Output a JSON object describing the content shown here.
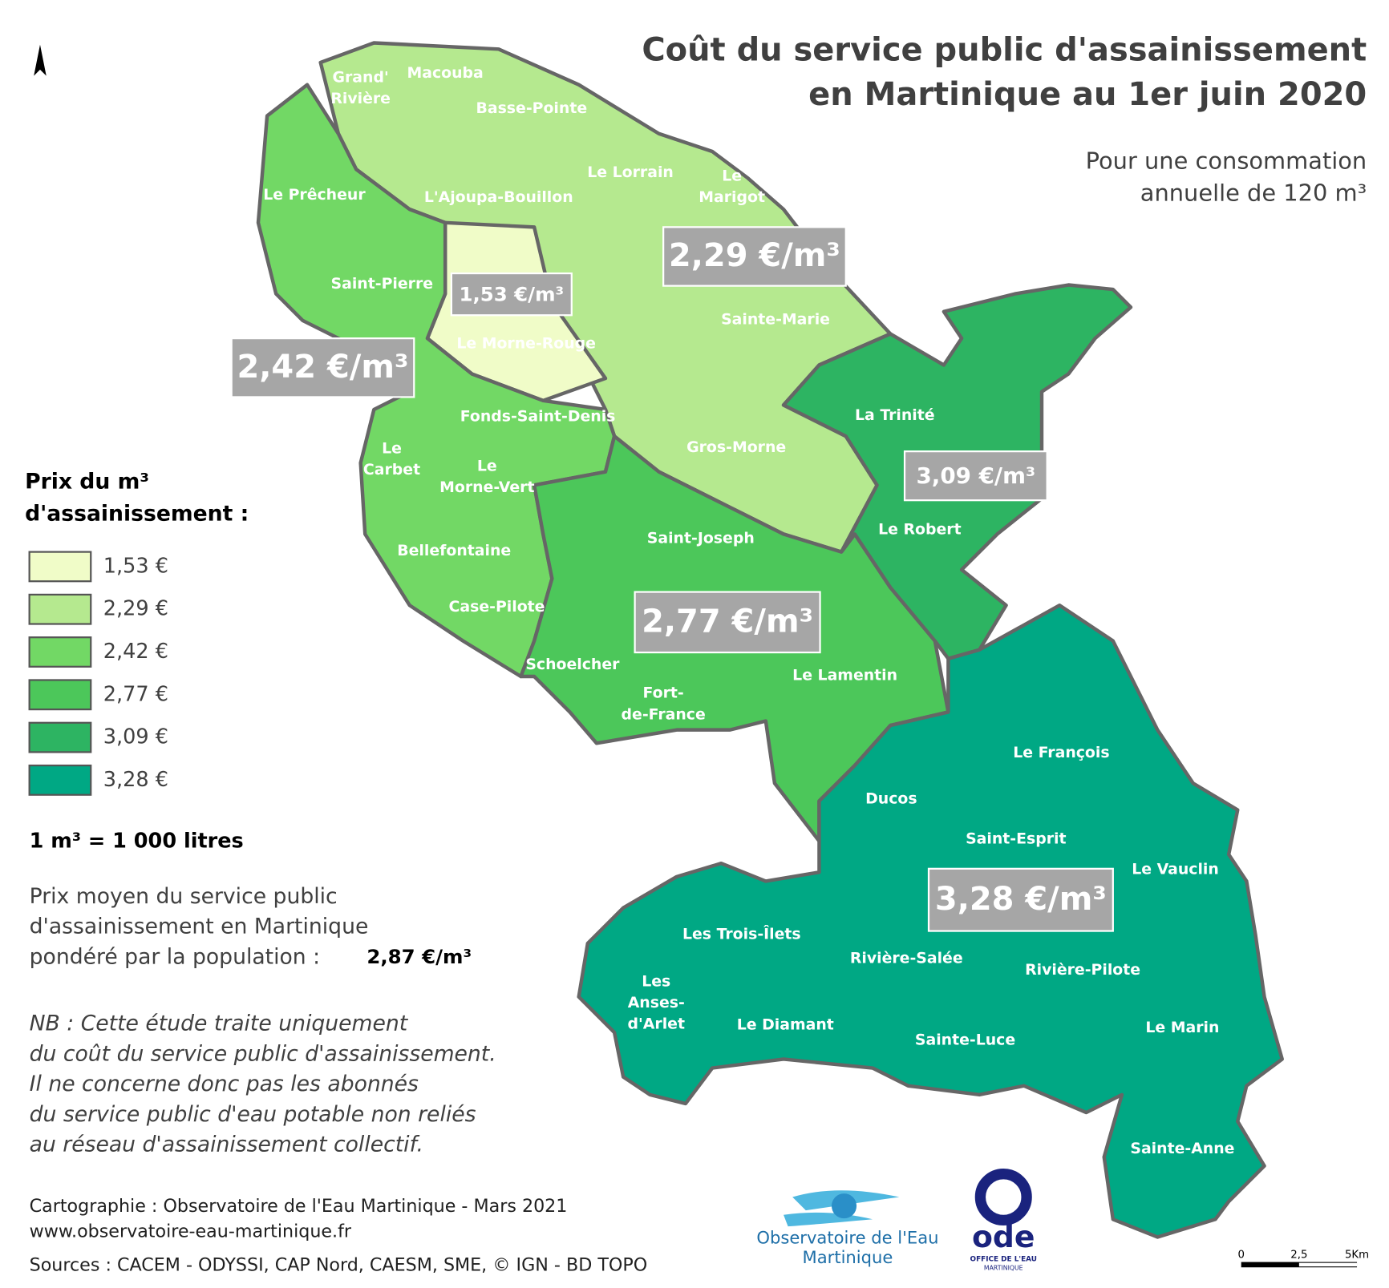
{
  "title": [
    "Coût du service public d'assainissement",
    "en Martinique au 1er juin 2020"
  ],
  "subtitle": [
    "Pour une consommation",
    "annuelle de 120 m³"
  ],
  "north": "N",
  "legend": {
    "title": [
      "Prix du m³",
      "d'assainissement :"
    ],
    "items": [
      {
        "label": "1,53 €",
        "color": "#f0fcc8"
      },
      {
        "label": "2,29 €",
        "color": "#b5e98f"
      },
      {
        "label": "2,42 €",
        "color": "#72d865"
      },
      {
        "label": "2,77 €",
        "color": "#4cc75a"
      },
      {
        "label": "3,09 €",
        "color": "#2db462"
      },
      {
        "label": "3,28 €",
        "color": "#00a884"
      }
    ]
  },
  "conversion": "1 m³ = 1 000 litres",
  "average": {
    "lines": [
      "Prix moyen du service public",
      "d'assainissement en Martinique",
      "pondéré par la population : "
    ],
    "value": "2,87 €/m³"
  },
  "note": [
    "NB : Cette étude traite uniquement",
    "du coût du service public d'assainissement.",
    "Il ne concerne donc pas les abonnés",
    "du service public d'eau potable non reliés",
    "au réseau d'assainissement collectif."
  ],
  "credits": [
    "Cartographie : Observatoire de l'Eau Martinique - Mars 2021",
    "www.observatoire-eau-martinique.fr",
    "Sources : CACEM - ODYSSI, CAP Nord, CAESM,  SME, © IGN - BD TOPO"
  ],
  "price_boxes": [
    "1,53 €/m³",
    "2,29 €/m³",
    "2,42 €/m³",
    "2,77 €/m³",
    "3,09 €/m³",
    "3,28 €/m³"
  ],
  "communes": [
    {
      "name": [
        "Grand'",
        "Rivière"
      ],
      "group": 1
    },
    {
      "name": [
        "Macouba"
      ],
      "group": 1
    },
    {
      "name": [
        "Basse-Pointe"
      ],
      "group": 1
    },
    {
      "name": [
        "Le Prêcheur"
      ],
      "group": 2
    },
    {
      "name": [
        "L'Ajoupa-Bouillon"
      ],
      "group": 1
    },
    {
      "name": [
        "Le Lorrain"
      ],
      "group": 1
    },
    {
      "name": [
        "Le",
        "Marigot"
      ],
      "group": 1
    },
    {
      "name": [
        "Saint-Pierre"
      ],
      "group": 2
    },
    {
      "name": [
        "Le Morne-Rouge"
      ],
      "group": 0
    },
    {
      "name": [
        "Sainte-Marie"
      ],
      "group": 1
    },
    {
      "name": [
        "La Trinité"
      ],
      "group": 4
    },
    {
      "name": [
        "Fonds-Saint-Denis"
      ],
      "group": 2
    },
    {
      "name": [
        "Gros-Morne"
      ],
      "group": 1
    },
    {
      "name": [
        "Le",
        "Carbet"
      ],
      "group": 2
    },
    {
      "name": [
        "Le",
        "Morne-Vert"
      ],
      "group": 2
    },
    {
      "name": [
        "Le Robert"
      ],
      "group": 4
    },
    {
      "name": [
        "Saint-Joseph"
      ],
      "group": 3
    },
    {
      "name": [
        "Bellefontaine"
      ],
      "group": 2
    },
    {
      "name": [
        "Case-Pilote"
      ],
      "group": 2
    },
    {
      "name": [
        "Schoelcher"
      ],
      "group": 3
    },
    {
      "name": [
        "Fort-",
        "de-France"
      ],
      "group": 3
    },
    {
      "name": [
        "Le Lamentin"
      ],
      "group": 3
    },
    {
      "name": [
        "Le François"
      ],
      "group": 5
    },
    {
      "name": [
        "Ducos"
      ],
      "group": 5
    },
    {
      "name": [
        "Saint-Esprit"
      ],
      "group": 5
    },
    {
      "name": [
        "Le Vauclin"
      ],
      "group": 5
    },
    {
      "name": [
        "Les Trois-Îlets"
      ],
      "group": 5
    },
    {
      "name": [
        "Rivière-Salée"
      ],
      "group": 5
    },
    {
      "name": [
        "Rivière-Pilote"
      ],
      "group": 5
    },
    {
      "name": [
        "Les",
        "Anses-",
        "d'Arlet"
      ],
      "group": 5
    },
    {
      "name": [
        "Le Diamant"
      ],
      "group": 5
    },
    {
      "name": [
        "Sainte-Luce"
      ],
      "group": 5
    },
    {
      "name": [
        "Le Marin"
      ],
      "group": 5
    },
    {
      "name": [
        "Sainte-Anne"
      ],
      "group": 5
    }
  ],
  "logos": {
    "observatoire": [
      "Observatoire de l'Eau",
      "Martinique"
    ],
    "ode": [
      "ode",
      "OFFICE DE L'EAU",
      "MARTINIQUE"
    ]
  },
  "scale_bar": [
    "0",
    "2,5",
    "5Km"
  ]
}
